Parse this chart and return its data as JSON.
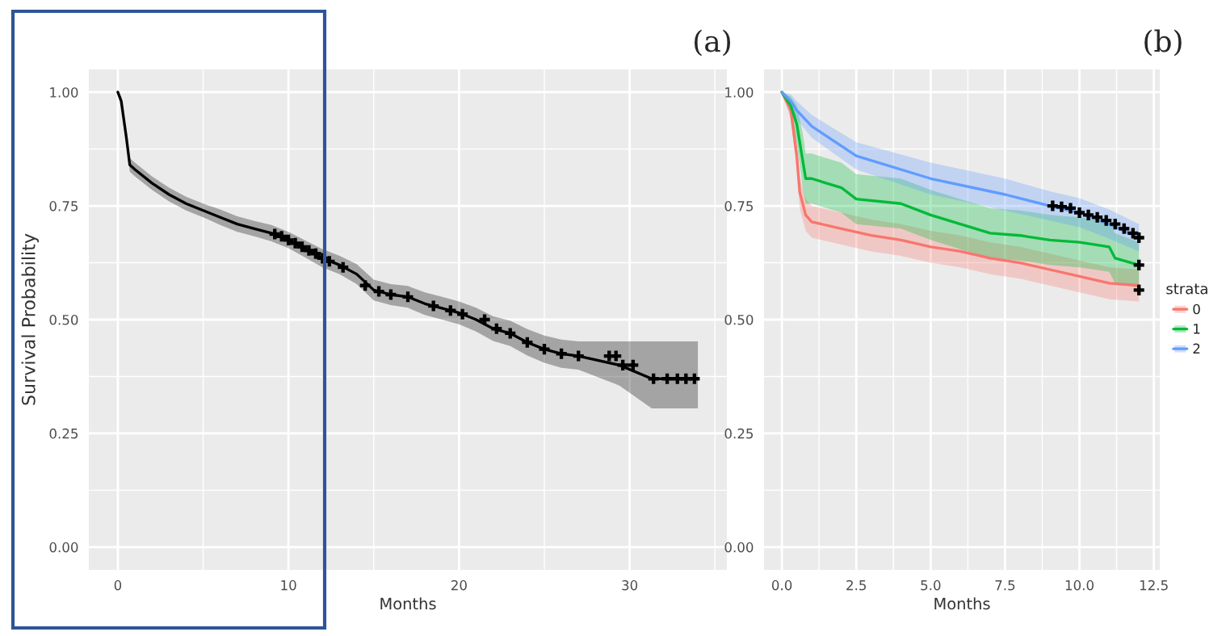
{
  "chart_data": [
    {
      "type": "line",
      "xlabel": "Months",
      "ylabel": "Survival Probability",
      "annotations": [
        "(a)"
      ],
      "xlim": [
        -1.7,
        35.7
      ],
      "ylim": [
        -0.05,
        1.05
      ],
      "xticks": [
        0,
        10,
        20,
        30
      ],
      "yticks": [
        {
          "value": 0,
          "label": "0.00"
        },
        {
          "value": 0.25,
          "label": "0.25"
        },
        {
          "value": 0.5,
          "label": "0.50"
        },
        {
          "value": 0.75,
          "label": "0.75"
        },
        {
          "value": 1,
          "label": "1.00"
        }
      ],
      "grid": true,
      "legend": false,
      "series": [
        {
          "color": "#000000",
          "x": [
            0,
            0.2,
            0.5,
            0.7,
            1,
            2,
            3,
            4,
            5,
            6,
            7,
            8,
            9,
            10,
            11,
            12,
            13,
            14,
            15,
            16,
            17,
            18,
            19,
            20,
            21,
            22,
            23,
            24,
            25,
            26,
            27,
            29.4,
            31.3,
            34
          ],
          "values": [
            1.0,
            0.98,
            0.9,
            0.84,
            0.83,
            0.8,
            0.775,
            0.755,
            0.74,
            0.725,
            0.71,
            0.7,
            0.69,
            0.675,
            0.655,
            0.635,
            0.62,
            0.6,
            0.565,
            0.555,
            0.55,
            0.535,
            0.525,
            0.515,
            0.5,
            0.48,
            0.47,
            0.45,
            0.435,
            0.425,
            0.42,
            0.4,
            0.37,
            0.37
          ],
          "lower": [
            1.0,
            0.97,
            0.89,
            0.825,
            0.815,
            0.785,
            0.76,
            0.74,
            0.725,
            0.708,
            0.693,
            0.683,
            0.672,
            0.657,
            0.636,
            0.615,
            0.6,
            0.578,
            0.542,
            0.532,
            0.526,
            0.51,
            0.5,
            0.49,
            0.474,
            0.453,
            0.442,
            0.421,
            0.405,
            0.394,
            0.39,
            0.355,
            0.305,
            0.305
          ],
          "upper": [
            1.0,
            0.99,
            0.91,
            0.855,
            0.845,
            0.815,
            0.79,
            0.77,
            0.755,
            0.742,
            0.727,
            0.717,
            0.708,
            0.693,
            0.674,
            0.655,
            0.64,
            0.622,
            0.588,
            0.578,
            0.574,
            0.56,
            0.55,
            0.54,
            0.526,
            0.507,
            0.498,
            0.479,
            0.465,
            0.456,
            0.452,
            0.452,
            0.452,
            0.452
          ]
        },
        {
          "type": "scatter",
          "marker": "cross",
          "color": "#000000",
          "x": [
            9.2,
            9.6,
            10,
            10.4,
            10.8,
            11.2,
            11.6,
            12,
            12.4,
            13.2,
            14.5,
            15.3,
            16,
            17,
            18.5,
            19.5,
            20.2,
            21.5,
            22.2,
            23,
            24,
            25,
            26,
            27,
            28.8,
            29.2,
            29.6,
            30.2,
            31.4,
            32.2,
            32.8,
            33.3,
            33.8
          ],
          "values": [
            0.688,
            0.683,
            0.675,
            0.668,
            0.66,
            0.652,
            0.645,
            0.635,
            0.628,
            0.615,
            0.575,
            0.562,
            0.555,
            0.55,
            0.53,
            0.52,
            0.512,
            0.5,
            0.48,
            0.47,
            0.45,
            0.435,
            0.425,
            0.42,
            0.42,
            0.42,
            0.4,
            0.4,
            0.37,
            0.37,
            0.37,
            0.37,
            0.37
          ]
        }
      ]
    },
    {
      "type": "line",
      "xlabel": "Months",
      "legend_title": "strata",
      "annotations": [
        "(b)"
      ],
      "xlim": [
        -0.6,
        12.7
      ],
      "ylim": [
        -0.05,
        1.05
      ],
      "xticks": [
        {
          "value": 0,
          "label": "0.0"
        },
        {
          "value": 2.5,
          "label": "2.5"
        },
        {
          "value": 5,
          "label": "5.0"
        },
        {
          "value": 7.5,
          "label": "7.5"
        },
        {
          "value": 10,
          "label": "10.0"
        },
        {
          "value": 12.5,
          "label": "12.5"
        }
      ],
      "yticks": [
        {
          "value": 0,
          "label": "0.00"
        },
        {
          "value": 0.25,
          "label": "0.25"
        },
        {
          "value": 0.5,
          "label": "0.50"
        },
        {
          "value": 0.75,
          "label": "0.75"
        },
        {
          "value": 1,
          "label": "1.00"
        }
      ],
      "grid": true,
      "legend": "right",
      "series": [
        {
          "name": "0",
          "color": "#f8766d",
          "x": [
            0,
            0.3,
            0.5,
            0.6,
            0.8,
            1,
            2,
            3,
            4,
            5,
            6,
            7,
            8,
            9,
            10,
            11,
            12
          ],
          "values": [
            1.0,
            0.96,
            0.86,
            0.78,
            0.73,
            0.715,
            0.7,
            0.685,
            0.675,
            0.66,
            0.65,
            0.635,
            0.625,
            0.61,
            0.595,
            0.58,
            0.575
          ],
          "lower": [
            1.0,
            0.94,
            0.83,
            0.745,
            0.695,
            0.68,
            0.665,
            0.65,
            0.64,
            0.625,
            0.615,
            0.6,
            0.59,
            0.575,
            0.56,
            0.545,
            0.54
          ],
          "upper": [
            1.0,
            0.98,
            0.89,
            0.815,
            0.765,
            0.75,
            0.735,
            0.72,
            0.71,
            0.695,
            0.685,
            0.67,
            0.66,
            0.645,
            0.63,
            0.615,
            0.61
          ]
        },
        {
          "name": "1",
          "color": "#00ba38",
          "x": [
            0,
            0.3,
            0.5,
            0.7,
            0.8,
            1,
            2,
            2.5,
            4,
            5,
            6,
            7,
            8,
            9,
            10,
            11,
            11.2,
            12
          ],
          "values": [
            1.0,
            0.97,
            0.93,
            0.85,
            0.81,
            0.81,
            0.79,
            0.765,
            0.755,
            0.73,
            0.71,
            0.69,
            0.685,
            0.675,
            0.67,
            0.66,
            0.635,
            0.62
          ],
          "lower": [
            1.0,
            0.95,
            0.89,
            0.79,
            0.755,
            0.755,
            0.735,
            0.71,
            0.7,
            0.675,
            0.655,
            0.635,
            0.63,
            0.62,
            0.615,
            0.605,
            0.58,
            0.57
          ],
          "upper": [
            1.0,
            0.99,
            0.97,
            0.91,
            0.865,
            0.865,
            0.845,
            0.82,
            0.81,
            0.785,
            0.765,
            0.745,
            0.74,
            0.73,
            0.725,
            0.715,
            0.69,
            0.67
          ]
        },
        {
          "name": "2",
          "color": "#619cff",
          "x": [
            0,
            0.3,
            0.5,
            1,
            2.5,
            5,
            7.5,
            9,
            10,
            11,
            12
          ],
          "values": [
            1.0,
            0.98,
            0.96,
            0.925,
            0.86,
            0.81,
            0.775,
            0.75,
            0.735,
            0.71,
            0.68
          ],
          "lower": [
            1.0,
            0.965,
            0.94,
            0.9,
            0.83,
            0.775,
            0.74,
            0.718,
            0.703,
            0.678,
            0.65
          ],
          "upper": [
            1.0,
            0.995,
            0.98,
            0.95,
            0.89,
            0.845,
            0.81,
            0.782,
            0.767,
            0.742,
            0.71
          ]
        },
        {
          "type": "scatter",
          "marker": "cross",
          "color": "#000000",
          "x": [
            9.1,
            9.4,
            9.7,
            10,
            10.3,
            10.6,
            10.9,
            11.2,
            11.5,
            11.8,
            12,
            12,
            12
          ],
          "values": [
            0.75,
            0.748,
            0.745,
            0.735,
            0.73,
            0.725,
            0.718,
            0.71,
            0.7,
            0.69,
            0.68,
            0.62,
            0.565
          ]
        }
      ]
    }
  ]
}
